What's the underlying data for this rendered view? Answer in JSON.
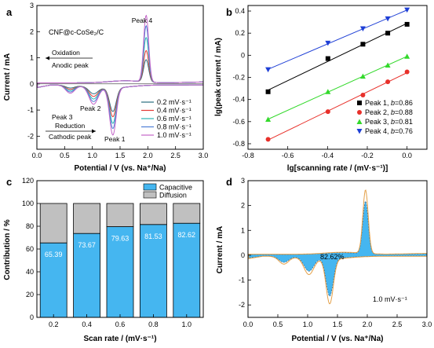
{
  "chart_data": [
    {
      "panel": "a",
      "type": "line",
      "title": "",
      "xlabel": "Potential / V (vs. Na⁺/Na)",
      "ylabel": "Current / mA",
      "xlim": [
        0.0,
        3.0
      ],
      "ylim": [
        -2.5,
        3.0
      ],
      "xticks": [
        "0.0",
        "0.5",
        "1.0",
        "1.5",
        "2.0",
        "2.5",
        "3.0"
      ],
      "yticks": [
        "-2",
        "-1",
        "0",
        "1",
        "2",
        "3"
      ],
      "sample_label": "CNF@c-CoSe₂/C",
      "annotations": [
        "Peak 4",
        "Oxidation",
        "Anodic peak",
        "Peak 2",
        "Peak 3",
        "Reduction",
        "Cathodic peak",
        "Peak 1"
      ],
      "legend_position": "bottom-right",
      "series": [
        {
          "name": "0.2 mV·s⁻¹",
          "color": "#2a6f7f",
          "peaks": {
            "ox": 0.85,
            "red": -0.9,
            "p2": -0.25,
            "p3": -0.1
          }
        },
        {
          "name": "0.4 mV·s⁻¹",
          "color": "#e53935",
          "peaks": {
            "ox": 1.2,
            "red": -1.1,
            "p2": -0.35,
            "p3": -0.15
          }
        },
        {
          "name": "0.6 mV·s⁻¹",
          "color": "#2db5b5",
          "peaks": {
            "ox": 1.7,
            "red": -1.35,
            "p2": -0.45,
            "p3": -0.2
          }
        },
        {
          "name": "0.8 mV·s⁻¹",
          "color": "#4e7fd6",
          "peaks": {
            "ox": 2.15,
            "red": -1.55,
            "p2": -0.55,
            "p3": -0.25
          }
        },
        {
          "name": "1.0 mV·s⁻¹",
          "color": "#c466c9",
          "peaks": {
            "ox": 2.55,
            "red": -1.8,
            "p2": -0.65,
            "p3": -0.3
          }
        }
      ]
    },
    {
      "panel": "b",
      "type": "scatter",
      "title": "",
      "xlabel": "lg[scanning rate / (mV·s⁻¹)]",
      "ylabel": "lg(peak current / mA)",
      "xlim": [
        -0.8,
        0.1
      ],
      "ylim": [
        -0.85,
        0.45
      ],
      "xticks": [
        "-0.8",
        "-0.6",
        "-0.4",
        "-0.2",
        "0.0"
      ],
      "yticks": [
        "-0.8",
        "-0.6",
        "-0.4",
        "-0.2",
        "0",
        "0.2",
        "0.4"
      ],
      "legend_position": "bottom-right",
      "x": [
        -0.699,
        -0.398,
        -0.222,
        -0.097,
        0.0
      ],
      "series": [
        {
          "name": "Peak 1",
          "b_label": "b",
          "b_value": "=0.86",
          "color": "#000000",
          "marker": "square",
          "values": [
            -0.33,
            -0.03,
            0.1,
            0.2,
            0.28
          ]
        },
        {
          "name": "Peak 2",
          "b_label": "b",
          "b_value": "=0.88",
          "color": "#e8302a",
          "marker": "circle",
          "values": [
            -0.76,
            -0.51,
            -0.36,
            -0.24,
            -0.15
          ]
        },
        {
          "name": "Peak 3",
          "b_label": "b",
          "b_value": "=0.81",
          "color": "#33d92b",
          "marker": "triangle-up",
          "values": [
            -0.58,
            -0.33,
            -0.19,
            -0.09,
            -0.01
          ]
        },
        {
          "name": "Peak 4",
          "b_label": "b",
          "b_value": "=0.76",
          "color": "#1e3fd6",
          "marker": "triangle-down",
          "values": [
            -0.13,
            0.11,
            0.24,
            0.33,
            0.41
          ]
        }
      ]
    },
    {
      "panel": "c",
      "type": "bar",
      "title": "",
      "xlabel": "Scan rate / (mV·s⁻¹)",
      "ylabel": "Contribution / %",
      "ylim": [
        0,
        120
      ],
      "yticks": [
        "0",
        "20",
        "40",
        "60",
        "80",
        "100",
        "120"
      ],
      "categories": [
        "0.2",
        "0.4",
        "0.6",
        "0.8",
        "1.0"
      ],
      "legend_position": "top-right",
      "series": [
        {
          "name": "Capacitive",
          "color": "#45b6f0",
          "values": [
            65.39,
            73.67,
            79.63,
            81.53,
            82.62
          ],
          "labels": [
            "65.39",
            "73.67",
            "79.63",
            "81.53",
            "82.62"
          ]
        },
        {
          "name": "Diffusion",
          "color": "#c0c0c0",
          "values": [
            34.61,
            26.33,
            20.37,
            18.47,
            17.38
          ]
        }
      ]
    },
    {
      "panel": "d",
      "type": "area",
      "title": "",
      "xlabel": "Potential / V (vs. Na⁺/Na)",
      "ylabel": "Current / mA",
      "xlim": [
        0.0,
        3.0
      ],
      "ylim": [
        -2.5,
        3.0
      ],
      "xticks": [
        "0.0",
        "0.5",
        "1.0",
        "1.5",
        "2.0",
        "2.5",
        "3.0"
      ],
      "yticks": [
        "-2",
        "-1",
        "0",
        "1",
        "2",
        "3"
      ],
      "annotations": [
        "82.62%",
        "1.0 mV·s⁻¹"
      ],
      "colors": {
        "fill": "#45b6f0",
        "outline": "#e4a14a"
      },
      "total_peaks": {
        "ox": 2.55,
        "red": -1.8,
        "p2": -0.65,
        "p3": -0.3
      },
      "capacitive_fraction": 0.8262
    }
  ]
}
